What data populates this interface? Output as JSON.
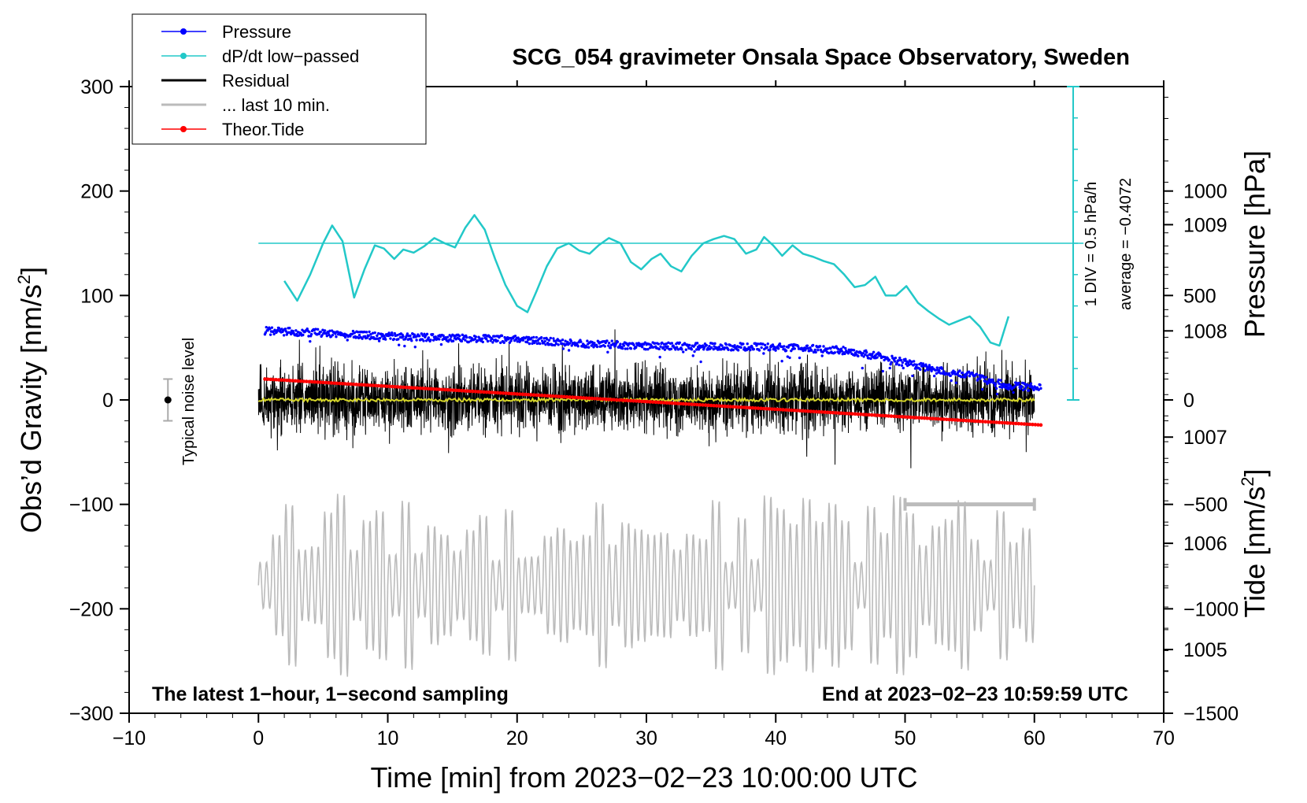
{
  "chart_data": {
    "type": "line",
    "title": "SCG_054 gravimeter Onsala Space Observatory, Sweden",
    "xlabel": "Time [min] from 2023−02−23 10:00:00 UTC",
    "ylabel_left_main": "Obs’d Gravity [nm/s",
    "ylabel_left_sup": "2",
    "ylabel_left_end": "]",
    "ylabel_right_pressure": "Pressure [hPa]",
    "ylabel_right_tide_main": "Tide [nm/s",
    "ylabel_right_tide_sup": "2",
    "ylabel_right_tide_end": "]",
    "xlim": [
      -10,
      70
    ],
    "ylim": [
      -300,
      300
    ],
    "pressure_lim_hpa": [
      1004.4,
      1010.3
    ],
    "tide_lim": [
      -1500,
      1500
    ],
    "x_ticks": [
      "−10",
      "0",
      "10",
      "20",
      "30",
      "40",
      "50",
      "60",
      "70"
    ],
    "x_tick_values": [
      -10,
      0,
      10,
      20,
      30,
      40,
      50,
      60,
      70
    ],
    "y_ticks": [
      "300",
      "200",
      "100",
      "0",
      "−100",
      "−200",
      "−300"
    ],
    "y_tick_values": [
      300,
      200,
      100,
      0,
      -100,
      -200,
      -300
    ],
    "pressure_ticks": [
      "1009",
      "1008",
      "1007",
      "1006",
      "1005"
    ],
    "pressure_tick_values": [
      1009,
      1008,
      1007,
      1006,
      1005
    ],
    "tide_ticks": [
      "1000",
      "500",
      "0",
      "−500",
      "−1000",
      "−1500"
    ],
    "tide_tick_values": [
      1000,
      500,
      0,
      -500,
      -1000,
      -1500
    ],
    "legend": [
      {
        "label": "Pressure",
        "color": "#0000ff",
        "marker": true
      },
      {
        "label": "dP/dt low−passed",
        "color": "#22c8c8",
        "marker": true
      },
      {
        "label": "Residual",
        "color": "#000000",
        "marker": false
      },
      {
        "label": "... last 10 min.",
        "color": "#bbbbbb",
        "marker": false
      },
      {
        "label": "Theor.Tide",
        "color": "#ff0000",
        "marker": true
      }
    ],
    "annotations": {
      "bottom_left": "The latest 1−hour, 1−second sampling",
      "bottom_right": "End at 2023−02−23 10:59:59 UTC",
      "noise_label": "Typical noise level",
      "dpdt_scale": "1 DIV = 0.5 hPa/h",
      "dpdt_average": "average = −0.4072"
    },
    "series": [
      {
        "name": "Pressure",
        "color": "#0000ff",
        "unit": "hPa",
        "x": [
          0.5,
          5,
          10,
          15,
          20,
          25,
          30,
          35,
          40,
          45,
          48,
          50,
          52,
          55,
          58,
          60.5
        ],
        "values": [
          1008.0,
          1007.98,
          1007.95,
          1007.93,
          1007.92,
          1007.88,
          1007.86,
          1007.85,
          1007.85,
          1007.82,
          1007.76,
          1007.7,
          1007.64,
          1007.58,
          1007.48,
          1007.47
        ]
      },
      {
        "name": "dP/dt low-passed",
        "color": "#22c8c8",
        "unit": "gravity-axis units",
        "baseline": 150,
        "x": [
          2.0,
          3.0,
          4.0,
          5.0,
          5.7,
          6.5,
          7.4,
          8.2,
          9.0,
          9.7,
          10.5,
          11.2,
          12.0,
          12.8,
          13.6,
          14.4,
          15.2,
          16.0,
          16.7,
          17.5,
          18.3,
          19.1,
          20.0,
          20.8,
          21.5,
          22.3,
          23.1,
          24.0,
          24.8,
          25.6,
          26.3,
          27.1,
          28.0,
          28.8,
          29.6,
          30.4,
          31.1,
          31.9,
          32.7,
          33.5,
          34.4,
          35.2,
          36.0,
          36.8,
          37.7,
          38.5,
          39.1,
          39.8,
          40.5,
          41.3,
          42.1,
          42.9,
          43.7,
          44.5,
          45.3,
          46.1,
          46.9,
          47.7,
          48.5,
          49.3,
          50.1,
          51.0,
          51.8,
          52.6,
          53.4,
          54.2,
          55.0,
          55.8,
          56.6,
          57.3,
          58.0
        ],
        "values": [
          114,
          95,
          120,
          150,
          167,
          152,
          98,
          125,
          148,
          145,
          135,
          144,
          141,
          147,
          155,
          150,
          146,
          165,
          177,
          163,
          135,
          110,
          90,
          84,
          104,
          128,
          145,
          150,
          143,
          140,
          148,
          155,
          150,
          132,
          125,
          135,
          140,
          128,
          123,
          138,
          150,
          154,
          157,
          154,
          140,
          144,
          156,
          148,
          138,
          148,
          140,
          137,
          133,
          130,
          120,
          108,
          110,
          118,
          100,
          100,
          109,
          93,
          85,
          78,
          72,
          76,
          80,
          70,
          55,
          52,
          80
        ]
      },
      {
        "name": "Residual",
        "color": "#000000",
        "unit": "nm/s2",
        "x_range": [
          0,
          60
        ],
        "amplitude_range": [
          -100,
          100
        ]
      },
      {
        "name": "... last 10 min.",
        "color": "#bbbbbb",
        "unit": "nm/s2",
        "x_range": [
          0,
          60
        ],
        "amplitude_range": [
          -270,
          -85
        ],
        "window": [
          50,
          60
        ]
      },
      {
        "name": "Theor.Tide",
        "color": "#ff0000",
        "unit": "nm/s2",
        "x": [
          0.5,
          60.5
        ],
        "values": [
          100,
          -120
        ]
      }
    ]
  }
}
